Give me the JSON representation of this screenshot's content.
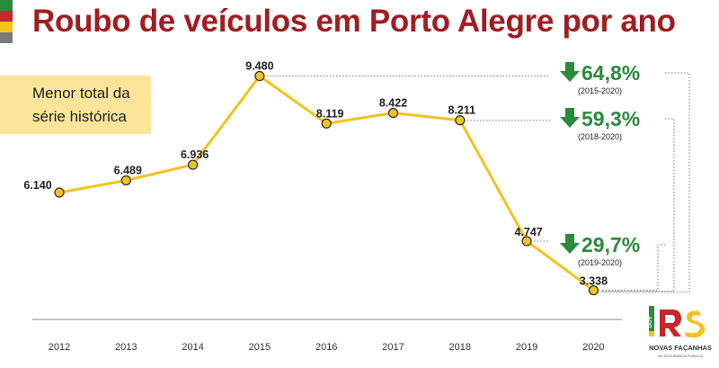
{
  "page": {
    "title": "Roubo de veículos em Porto Alegre por ano",
    "callout_line1": "Menor total da",
    "callout_line2": "série histórica",
    "flag_colors": [
      "#2a8b3d",
      "#c9252c",
      "#f2c31d",
      "#7b7b7b"
    ]
  },
  "variations": [
    {
      "pct": "64,8%",
      "period": "(2015-2020)"
    },
    {
      "pct": "59,3%",
      "period": "(2018-2020)"
    },
    {
      "pct": "29,7%",
      "period": "(2019-2020)"
    }
  ],
  "chart_data": {
    "type": "line",
    "title": "Roubo de veículos em Porto Alegre por ano",
    "xlabel": "",
    "ylabel": "",
    "categories": [
      "2012",
      "2013",
      "2014",
      "2015",
      "2016",
      "2017",
      "2018",
      "2019",
      "2020"
    ],
    "values": [
      6140,
      6489,
      6936,
      9480,
      8119,
      8422,
      8211,
      4747,
      3338
    ],
    "value_labels": [
      "6.140",
      "6.489",
      "6.936",
      "9.480",
      "8.119",
      "8.422",
      "8.211",
      "4.747",
      "3.338"
    ],
    "line_color": "#f2c31d",
    "marker_color": "#f2c31d",
    "grid": false,
    "legend": "none"
  },
  "logo": {
    "text_gov": "GOV",
    "text_main": "NOVAS FAÇANHAS",
    "text_sub": "NA SEGURANÇA PÚBLICA",
    "icon": "rs-government-logo"
  }
}
